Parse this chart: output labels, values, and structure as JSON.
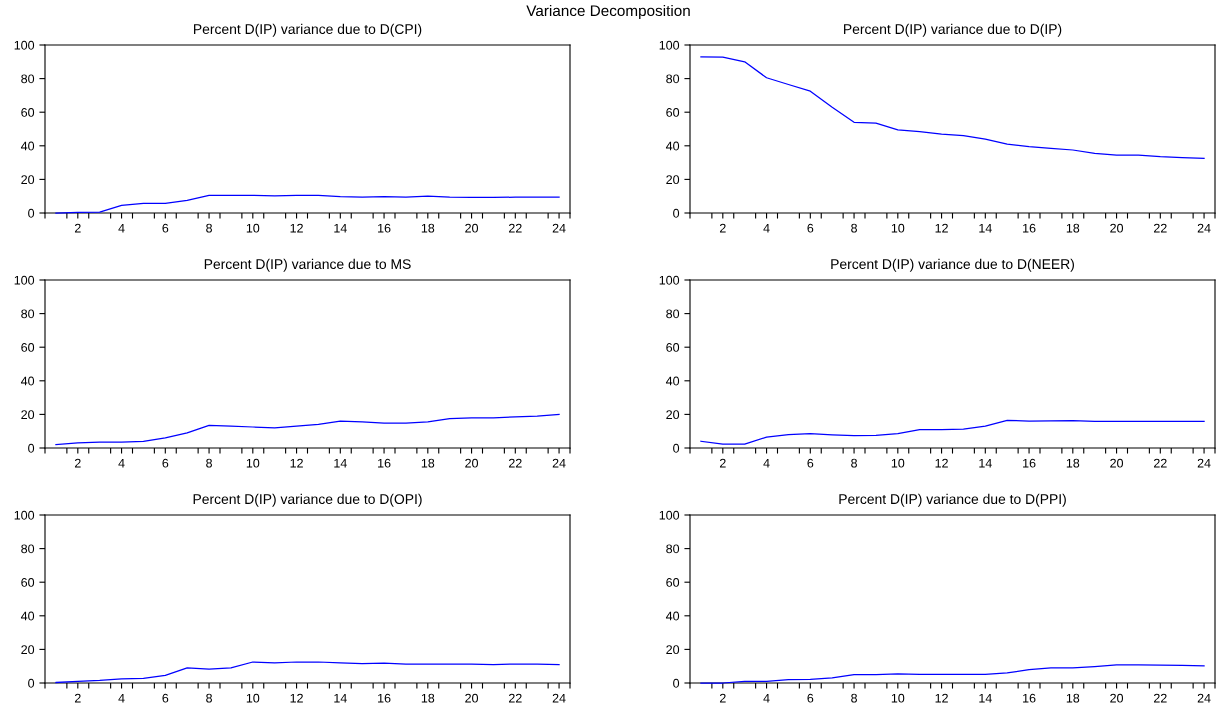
{
  "chart_data": [
    {
      "type": "line",
      "title": "Percent D(IP) variance due to D(CPI)",
      "annotations": [
        "Variance Decomposition"
      ],
      "x": [
        1,
        2,
        3,
        4,
        5,
        6,
        7,
        8,
        9,
        10,
        11,
        12,
        13,
        14,
        15,
        16,
        17,
        18,
        19,
        20,
        21,
        22,
        23,
        24
      ],
      "series": [
        {
          "color": "#0000ff",
          "values": [
            0,
            0.3,
            0.5,
            4.5,
            5.8,
            5.8,
            7.5,
            10.5,
            10.5,
            10.5,
            10.2,
            10.5,
            10.5,
            9.8,
            9.5,
            9.8,
            9.5,
            10,
            9.5,
            9.3,
            9.3,
            9.4,
            9.5,
            9.5
          ]
        }
      ],
      "xlim": [
        0.5,
        24.5
      ],
      "xticks": [
        {
          "value": 0.5,
          "label": null
        },
        {
          "value": 1.5,
          "label": null
        },
        2,
        {
          "value": 2.5,
          "label": null
        },
        {
          "value": 3.5,
          "label": null
        },
        4,
        {
          "value": 4.5,
          "label": null
        },
        {
          "value": 5.5,
          "label": null
        },
        6,
        {
          "value": 6.5,
          "label": null
        },
        {
          "value": 7.5,
          "label": null
        },
        8,
        {
          "value": 8.5,
          "label": null
        },
        {
          "value": 9.5,
          "label": null
        },
        10,
        {
          "value": 10.5,
          "label": null
        },
        {
          "value": 11.5,
          "label": null
        },
        12,
        {
          "value": 12.5,
          "label": null
        },
        {
          "value": 13.5,
          "label": null
        },
        14,
        {
          "value": 14.5,
          "label": null
        },
        {
          "value": 15.5,
          "label": null
        },
        16,
        {
          "value": 16.5,
          "label": null
        },
        {
          "value": 17.5,
          "label": null
        },
        18,
        {
          "value": 18.5,
          "label": null
        },
        {
          "value": 19.5,
          "label": null
        },
        20,
        {
          "value": 20.5,
          "label": null
        },
        {
          "value": 21.5,
          "label": null
        },
        22,
        {
          "value": 22.5,
          "label": null
        },
        {
          "value": 23.5,
          "label": null
        },
        24,
        {
          "value": 24.5,
          "label": null
        }
      ],
      "ylim": [
        0,
        100
      ],
      "yticks": [
        0,
        20,
        40,
        60,
        80,
        100
      ],
      "line_style": "solid"
    },
    {
      "type": "line",
      "title": "Percent D(IP) variance due to D(IP)",
      "x": [
        1,
        2,
        3,
        4,
        5,
        6,
        7,
        8,
        9,
        10,
        11,
        12,
        13,
        14,
        15,
        16,
        17,
        18,
        19,
        20,
        21,
        22,
        23,
        24
      ],
      "series": [
        {
          "color": "#0000ff",
          "values": [
            93,
            92.8,
            90,
            80.5,
            76.5,
            72.5,
            63,
            54,
            53.5,
            49.5,
            48.5,
            47,
            46,
            44,
            41,
            39.5,
            38.5,
            37.5,
            35.5,
            34.5,
            34.5,
            33.5,
            33,
            32.5
          ]
        }
      ],
      "xlim": [
        0.5,
        24.5
      ],
      "xticks": [
        {
          "value": 0.5,
          "label": null
        },
        {
          "value": 1.5,
          "label": null
        },
        2,
        {
          "value": 2.5,
          "label": null
        },
        {
          "value": 3.5,
          "label": null
        },
        4,
        {
          "value": 4.5,
          "label": null
        },
        {
          "value": 5.5,
          "label": null
        },
        6,
        {
          "value": 6.5,
          "label": null
        },
        {
          "value": 7.5,
          "label": null
        },
        8,
        {
          "value": 8.5,
          "label": null
        },
        {
          "value": 9.5,
          "label": null
        },
        10,
        {
          "value": 10.5,
          "label": null
        },
        {
          "value": 11.5,
          "label": null
        },
        12,
        {
          "value": 12.5,
          "label": null
        },
        {
          "value": 13.5,
          "label": null
        },
        14,
        {
          "value": 14.5,
          "label": null
        },
        {
          "value": 15.5,
          "label": null
        },
        16,
        {
          "value": 16.5,
          "label": null
        },
        {
          "value": 17.5,
          "label": null
        },
        18,
        {
          "value": 18.5,
          "label": null
        },
        {
          "value": 19.5,
          "label": null
        },
        20,
        {
          "value": 20.5,
          "label": null
        },
        {
          "value": 21.5,
          "label": null
        },
        22,
        {
          "value": 22.5,
          "label": null
        },
        {
          "value": 23.5,
          "label": null
        },
        24,
        {
          "value": 24.5,
          "label": null
        }
      ],
      "ylim": [
        0,
        100
      ],
      "yticks": [
        0,
        20,
        40,
        60,
        80,
        100
      ],
      "line_style": "solid"
    },
    {
      "type": "line",
      "title": "Percent D(IP) variance due to MS",
      "x": [
        1,
        2,
        3,
        4,
        5,
        6,
        7,
        8,
        9,
        10,
        11,
        12,
        13,
        14,
        15,
        16,
        17,
        18,
        19,
        20,
        21,
        22,
        23,
        24
      ],
      "series": [
        {
          "color": "#0000ff",
          "values": [
            2,
            3,
            3.5,
            3.5,
            4,
            6,
            9,
            13.5,
            13,
            12.5,
            12,
            13,
            14,
            16,
            15.5,
            14.8,
            14.8,
            15.5,
            17.5,
            18,
            18,
            18.5,
            19,
            20
          ]
        }
      ],
      "xlim": [
        0.5,
        24.5
      ],
      "xticks": [
        {
          "value": 0.5,
          "label": null
        },
        {
          "value": 1.5,
          "label": null
        },
        2,
        {
          "value": 2.5,
          "label": null
        },
        {
          "value": 3.5,
          "label": null
        },
        4,
        {
          "value": 4.5,
          "label": null
        },
        {
          "value": 5.5,
          "label": null
        },
        6,
        {
          "value": 6.5,
          "label": null
        },
        {
          "value": 7.5,
          "label": null
        },
        8,
        {
          "value": 8.5,
          "label": null
        },
        {
          "value": 9.5,
          "label": null
        },
        10,
        {
          "value": 10.5,
          "label": null
        },
        {
          "value": 11.5,
          "label": null
        },
        12,
        {
          "value": 12.5,
          "label": null
        },
        {
          "value": 13.5,
          "label": null
        },
        14,
        {
          "value": 14.5,
          "label": null
        },
        {
          "value": 15.5,
          "label": null
        },
        16,
        {
          "value": 16.5,
          "label": null
        },
        {
          "value": 17.5,
          "label": null
        },
        18,
        {
          "value": 18.5,
          "label": null
        },
        {
          "value": 19.5,
          "label": null
        },
        20,
        {
          "value": 20.5,
          "label": null
        },
        {
          "value": 21.5,
          "label": null
        },
        22,
        {
          "value": 22.5,
          "label": null
        },
        {
          "value": 23.5,
          "label": null
        },
        24,
        {
          "value": 24.5,
          "label": null
        }
      ],
      "ylim": [
        0,
        100
      ],
      "yticks": [
        0,
        20,
        40,
        60,
        80,
        100
      ],
      "line_style": "solid"
    },
    {
      "type": "line",
      "title": "Percent D(IP) variance due to D(NEER)",
      "x": [
        1,
        2,
        3,
        4,
        5,
        6,
        7,
        8,
        9,
        10,
        11,
        12,
        13,
        14,
        15,
        16,
        17,
        18,
        19,
        20,
        21,
        22,
        23,
        24
      ],
      "series": [
        {
          "color": "#0000ff",
          "values": [
            4,
            2.3,
            2.3,
            6.5,
            8,
            8.5,
            7.8,
            7.3,
            7.5,
            8.5,
            11,
            11,
            11.3,
            13,
            16.5,
            16,
            16.2,
            16.3,
            15.8,
            15.8,
            15.8,
            15.8,
            15.8,
            15.8
          ]
        }
      ],
      "xlim": [
        0.5,
        24.5
      ],
      "xticks": [
        {
          "value": 0.5,
          "label": null
        },
        {
          "value": 1.5,
          "label": null
        },
        2,
        {
          "value": 2.5,
          "label": null
        },
        {
          "value": 3.5,
          "label": null
        },
        4,
        {
          "value": 4.5,
          "label": null
        },
        {
          "value": 5.5,
          "label": null
        },
        6,
        {
          "value": 6.5,
          "label": null
        },
        {
          "value": 7.5,
          "label": null
        },
        8,
        {
          "value": 8.5,
          "label": null
        },
        {
          "value": 9.5,
          "label": null
        },
        10,
        {
          "value": 10.5,
          "label": null
        },
        {
          "value": 11.5,
          "label": null
        },
        12,
        {
          "value": 12.5,
          "label": null
        },
        {
          "value": 13.5,
          "label": null
        },
        14,
        {
          "value": 14.5,
          "label": null
        },
        {
          "value": 15.5,
          "label": null
        },
        16,
        {
          "value": 16.5,
          "label": null
        },
        {
          "value": 17.5,
          "label": null
        },
        18,
        {
          "value": 18.5,
          "label": null
        },
        {
          "value": 19.5,
          "label": null
        },
        20,
        {
          "value": 20.5,
          "label": null
        },
        {
          "value": 21.5,
          "label": null
        },
        22,
        {
          "value": 22.5,
          "label": null
        },
        {
          "value": 23.5,
          "label": null
        },
        24,
        {
          "value": 24.5,
          "label": null
        }
      ],
      "ylim": [
        0,
        100
      ],
      "yticks": [
        0,
        20,
        40,
        60,
        80,
        100
      ],
      "line_style": "solid"
    },
    {
      "type": "line",
      "title": "Percent D(IP) variance due to D(OPI)",
      "x": [
        1,
        2,
        3,
        4,
        5,
        6,
        7,
        8,
        9,
        10,
        11,
        12,
        13,
        14,
        15,
        16,
        17,
        18,
        19,
        20,
        21,
        22,
        23,
        24
      ],
      "series": [
        {
          "color": "#0000ff",
          "values": [
            0.3,
            1,
            1.5,
            2.5,
            2.8,
            4.5,
            9,
            8.3,
            9,
            12.5,
            12,
            12.5,
            12.5,
            12,
            11.5,
            11.8,
            11.3,
            11.3,
            11.3,
            11.2,
            11,
            11.3,
            11.2,
            11
          ]
        }
      ],
      "xlim": [
        0.5,
        24.5
      ],
      "xticks": [
        {
          "value": 0.5,
          "label": null
        },
        {
          "value": 1.5,
          "label": null
        },
        2,
        {
          "value": 2.5,
          "label": null
        },
        {
          "value": 3.5,
          "label": null
        },
        4,
        {
          "value": 4.5,
          "label": null
        },
        {
          "value": 5.5,
          "label": null
        },
        6,
        {
          "value": 6.5,
          "label": null
        },
        {
          "value": 7.5,
          "label": null
        },
        8,
        {
          "value": 8.5,
          "label": null
        },
        {
          "value": 9.5,
          "label": null
        },
        10,
        {
          "value": 10.5,
          "label": null
        },
        {
          "value": 11.5,
          "label": null
        },
        12,
        {
          "value": 12.5,
          "label": null
        },
        {
          "value": 13.5,
          "label": null
        },
        14,
        {
          "value": 14.5,
          "label": null
        },
        {
          "value": 15.5,
          "label": null
        },
        16,
        {
          "value": 16.5,
          "label": null
        },
        {
          "value": 17.5,
          "label": null
        },
        18,
        {
          "value": 18.5,
          "label": null
        },
        {
          "value": 19.5,
          "label": null
        },
        20,
        {
          "value": 20.5,
          "label": null
        },
        {
          "value": 21.5,
          "label": null
        },
        22,
        {
          "value": 22.5,
          "label": null
        },
        {
          "value": 23.5,
          "label": null
        },
        24,
        {
          "value": 24.5,
          "label": null
        }
      ],
      "ylim": [
        0,
        100
      ],
      "yticks": [
        0,
        20,
        40,
        60,
        80,
        100
      ],
      "line_style": "solid"
    },
    {
      "type": "line",
      "title": "Percent D(IP) variance due to D(PPI)",
      "x": [
        1,
        2,
        3,
        4,
        5,
        6,
        7,
        8,
        9,
        10,
        11,
        12,
        13,
        14,
        15,
        16,
        17,
        18,
        19,
        20,
        21,
        22,
        23,
        24
      ],
      "series": [
        {
          "color": "#0000ff",
          "values": [
            0,
            0,
            1,
            1,
            2,
            2.2,
            3,
            5,
            5,
            5.5,
            5.2,
            5.2,
            5.2,
            5.2,
            6,
            8,
            9,
            9,
            9.8,
            10.8,
            10.8,
            10.6,
            10.5,
            10.2
          ]
        }
      ],
      "xlim": [
        0.5,
        24.5
      ],
      "xticks": [
        {
          "value": 0.5,
          "label": null
        },
        {
          "value": 1.5,
          "label": null
        },
        2,
        {
          "value": 2.5,
          "label": null
        },
        {
          "value": 3.5,
          "label": null
        },
        4,
        {
          "value": 4.5,
          "label": null
        },
        {
          "value": 5.5,
          "label": null
        },
        6,
        {
          "value": 6.5,
          "label": null
        },
        {
          "value": 7.5,
          "label": null
        },
        8,
        {
          "value": 8.5,
          "label": null
        },
        {
          "value": 9.5,
          "label": null
        },
        10,
        {
          "value": 10.5,
          "label": null
        },
        {
          "value": 11.5,
          "label": null
        },
        12,
        {
          "value": 12.5,
          "label": null
        },
        {
          "value": 13.5,
          "label": null
        },
        14,
        {
          "value": 14.5,
          "label": null
        },
        {
          "value": 15.5,
          "label": null
        },
        16,
        {
          "value": 16.5,
          "label": null
        },
        {
          "value": 17.5,
          "label": null
        },
        18,
        {
          "value": 18.5,
          "label": null
        },
        {
          "value": 19.5,
          "label": null
        },
        20,
        {
          "value": 20.5,
          "label": null
        },
        {
          "value": 21.5,
          "label": null
        },
        22,
        {
          "value": 22.5,
          "label": null
        },
        {
          "value": 23.5,
          "label": null
        },
        24,
        {
          "value": 24.5,
          "label": null
        }
      ],
      "ylim": [
        0,
        100
      ],
      "yticks": [
        0,
        20,
        40,
        60,
        80,
        100
      ],
      "line_style": "solid"
    }
  ]
}
